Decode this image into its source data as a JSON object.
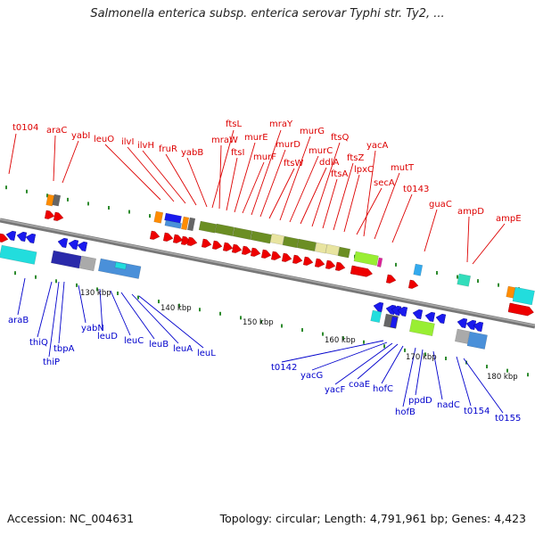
{
  "header": {
    "title": "Salmonella enterica subsp. enterica serovar Typhi str. Ty2, ..."
  },
  "footer": {
    "accession": "Accession: NC_004631",
    "summary": "Topology: circular; Length: 4,791,961 bp; Genes: 4,423"
  },
  "colors": {
    "top_label": "#dd0000",
    "bottom_label": "#0000cc",
    "forward_arrow": "#ee0000",
    "reverse_arrow": "#1a1aee",
    "backbone": "#808080",
    "tick": "#2e8b2e",
    "olive_block": "#6b8e23",
    "light_block": "#e8e4a0",
    "lime_block": "#99ee33",
    "cyan_block": "#22dddd",
    "orange_block": "#ff8c00",
    "gray_block": "#aaaaaa"
  },
  "scale": {
    "ticks": [
      "130 kbp",
      "140 kbp",
      "150 kbp",
      "160 kbp",
      "170 kbp",
      "180 kbp"
    ]
  },
  "genes_top": [
    "t0104",
    "araC",
    "yabI",
    "leuO",
    "ilvI",
    "ilvH",
    "fruR",
    "yabB",
    "ftsL",
    "mraW",
    "ftsI",
    "murE",
    "murF",
    "mraY",
    "murD",
    "ftsW",
    "murG",
    "murC",
    "ddlA",
    "ftsQ",
    "ftsA",
    "ftsZ",
    "lpxC",
    "secA",
    "yacA",
    "mutT",
    "t0143",
    "guaC",
    "ampD",
    "ampE"
  ],
  "genes_bottom": [
    "araB",
    "thiQ",
    "thiP",
    "tbpA",
    "yabN",
    "leuD",
    "leuC",
    "leuB",
    "leuA",
    "leuL",
    "t0142",
    "yacG",
    "yacF",
    "coaE",
    "hofC",
    "hofB",
    "ppdD",
    "nadC",
    "t0154",
    "t0155"
  ]
}
